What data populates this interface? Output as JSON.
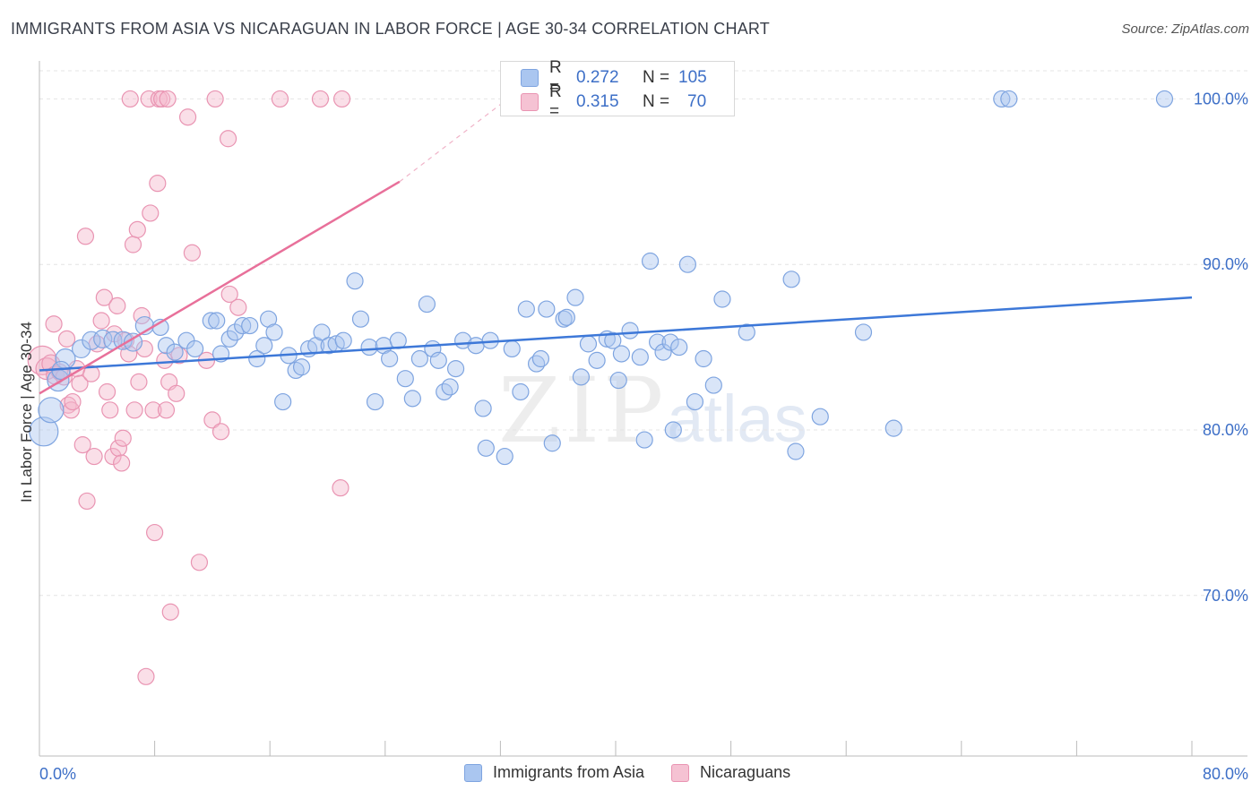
{
  "title": "IMMIGRANTS FROM ASIA VS NICARAGUAN IN LABOR FORCE | AGE 30-34 CORRELATION CHART",
  "source": "Source: ZipAtlas.com",
  "watermark": {
    "zip": "ZIP",
    "atlas": "atlas"
  },
  "colors": {
    "blue": "#3d78d8",
    "blue_fill": "#aac6f0",
    "pink": "#e8709a",
    "pink_fill": "#f5b8cc",
    "tick_text": "#3d6fc7"
  },
  "legend_top": [
    {
      "r_label": "R =",
      "r_value": "0.272",
      "n_label": "N =",
      "n_value": "105"
    },
    {
      "r_label": "R =",
      "r_value": "0.315",
      "n_label": "N =",
      "n_value": "70"
    }
  ],
  "legend_bottom": [
    "Immigrants from Asia",
    "Nicaraguans"
  ],
  "chart_data": {
    "type": "scatter",
    "title": "IMMIGRANTS FROM ASIA VS NICARAGUAN IN LABOR FORCE | AGE 30-34 CORRELATION CHART",
    "xlabel": "",
    "ylabel": "In Labor Force | Age 30-34",
    "xlim": [
      0,
      80
    ],
    "ylim": [
      60.3,
      101.7
    ],
    "x_tick_labels": [
      {
        "value": 0,
        "label": "0.0%"
      },
      {
        "value": 80,
        "label": "80.0%"
      }
    ],
    "y_ticks": [
      {
        "value": 70,
        "label": "70.0%"
      },
      {
        "value": 80,
        "label": "80.0%"
      },
      {
        "value": 90,
        "label": "90.0%"
      },
      {
        "value": 100,
        "label": "100.0%"
      }
    ],
    "x_minor_ticks": [
      0,
      8,
      16,
      24,
      32,
      40,
      48,
      56,
      64,
      72,
      80
    ],
    "series": [
      {
        "name": "Immigrants from Asia",
        "color": "#3d78d8",
        "R": 0.272,
        "N": 105,
        "trend": {
          "x0": 0,
          "y0": 83.6,
          "x1": 80,
          "y1": 88.0
        },
        "points": [
          [
            0.3,
            79.9,
            16
          ],
          [
            0.8,
            81.2,
            14
          ],
          [
            1.3,
            83.0,
            12
          ],
          [
            1.8,
            84.3,
            11
          ],
          [
            1.5,
            83.6,
            10
          ],
          [
            2.9,
            84.9,
            10
          ],
          [
            3.6,
            85.4,
            10
          ],
          [
            4.4,
            85.5,
            10
          ],
          [
            5.1,
            85.4,
            10
          ],
          [
            5.8,
            85.4,
            10
          ],
          [
            6.5,
            85.3,
            10
          ],
          [
            7.3,
            86.3,
            10
          ],
          [
            8.4,
            86.2,
            9
          ],
          [
            8.8,
            85.1,
            9
          ],
          [
            9.4,
            84.7,
            9
          ],
          [
            10.2,
            85.4,
            9
          ],
          [
            10.8,
            84.9,
            9
          ],
          [
            11.9,
            86.6,
            9
          ],
          [
            12.3,
            86.6,
            9
          ],
          [
            12.6,
            84.6,
            9
          ],
          [
            13.2,
            85.5,
            9
          ],
          [
            13.6,
            85.9,
            9
          ],
          [
            14.1,
            86.3,
            9
          ],
          [
            14.6,
            86.3,
            9
          ],
          [
            15.1,
            84.3,
            9
          ],
          [
            15.6,
            85.1,
            9
          ],
          [
            15.9,
            86.7,
            9
          ],
          [
            16.3,
            85.9,
            9
          ],
          [
            16.9,
            81.7,
            9
          ],
          [
            17.3,
            84.5,
            9
          ],
          [
            17.8,
            83.6,
            9
          ],
          [
            18.2,
            83.8,
            9
          ],
          [
            18.7,
            84.9,
            9
          ],
          [
            19.2,
            85.1,
            9
          ],
          [
            19.6,
            85.9,
            9
          ],
          [
            20.1,
            85.1,
            9
          ],
          [
            20.6,
            85.2,
            9
          ],
          [
            21.1,
            85.4,
            9
          ],
          [
            21.9,
            89.0,
            9
          ],
          [
            22.3,
            86.7,
            9
          ],
          [
            22.9,
            85.0,
            9
          ],
          [
            23.3,
            81.7,
            9
          ],
          [
            23.9,
            85.1,
            9
          ],
          [
            24.3,
            84.3,
            9
          ],
          [
            24.9,
            85.4,
            9
          ],
          [
            25.4,
            83.1,
            9
          ],
          [
            25.9,
            81.9,
            9
          ],
          [
            26.4,
            84.3,
            9
          ],
          [
            26.9,
            87.6,
            9
          ],
          [
            27.3,
            84.9,
            9
          ],
          [
            27.7,
            84.2,
            9
          ],
          [
            28.1,
            82.3,
            9
          ],
          [
            28.5,
            82.6,
            9
          ],
          [
            28.9,
            83.7,
            9
          ],
          [
            29.4,
            85.4,
            9
          ],
          [
            30.3,
            85.1,
            9
          ],
          [
            30.8,
            81.3,
            9
          ],
          [
            31.3,
            85.4,
            9
          ],
          [
            31.0,
            78.9,
            9
          ],
          [
            32.3,
            78.4,
            9
          ],
          [
            32.8,
            84.9,
            9
          ],
          [
            33.4,
            82.3,
            9
          ],
          [
            33.8,
            87.3,
            9
          ],
          [
            34.5,
            84.0,
            9
          ],
          [
            34.8,
            84.3,
            9
          ],
          [
            35.2,
            87.3,
            9
          ],
          [
            35.6,
            79.2,
            9
          ],
          [
            36.4,
            86.7,
            9
          ],
          [
            36.6,
            86.8,
            9
          ],
          [
            37.2,
            88.0,
            9
          ],
          [
            37.6,
            83.2,
            9
          ],
          [
            38.1,
            85.2,
            9
          ],
          [
            38.7,
            84.2,
            9
          ],
          [
            39.4,
            85.5,
            9
          ],
          [
            39.8,
            85.4,
            9
          ],
          [
            40.2,
            83.0,
            9
          ],
          [
            40.4,
            84.6,
            9
          ],
          [
            41.0,
            86.0,
            9
          ],
          [
            41.7,
            84.4,
            9
          ],
          [
            42.0,
            79.4,
            9
          ],
          [
            42.4,
            90.2,
            9
          ],
          [
            42.9,
            85.3,
            9
          ],
          [
            43.3,
            84.7,
            9
          ],
          [
            43.8,
            85.3,
            9
          ],
          [
            44.0,
            80.0,
            9
          ],
          [
            44.4,
            85.0,
            9
          ],
          [
            45.0,
            90.0,
            9
          ],
          [
            45.5,
            81.7,
            9
          ],
          [
            46.1,
            84.3,
            9
          ],
          [
            46.8,
            82.7,
            9
          ],
          [
            47.4,
            87.9,
            9
          ],
          [
            49.1,
            85.9,
            9
          ],
          [
            52.2,
            89.1,
            9
          ],
          [
            52.5,
            78.7,
            9
          ],
          [
            54.2,
            80.8,
            9
          ],
          [
            57.2,
            85.9,
            9
          ],
          [
            59.3,
            80.1,
            9
          ],
          [
            66.8,
            100.0,
            9
          ],
          [
            67.3,
            100.0,
            9
          ],
          [
            78.1,
            100.0,
            9
          ]
        ]
      },
      {
        "name": "Nicaraguans",
        "color": "#e8709a",
        "R": 0.315,
        "N": 70,
        "trend": {
          "x0": 0,
          "y0": 82.2,
          "x1": 25,
          "y1": 95.0,
          "dash_x1": 32.5,
          "dash_y1": 100.0
        },
        "points": [
          [
            0.2,
            84.2,
            16
          ],
          [
            0.5,
            83.7,
            12
          ],
          [
            0.8,
            84.0,
            10
          ],
          [
            1.1,
            83.3,
            10
          ],
          [
            1.0,
            86.4,
            9
          ],
          [
            1.4,
            83.5,
            9
          ],
          [
            1.7,
            83.2,
            9
          ],
          [
            1.9,
            85.5,
            9
          ],
          [
            2.0,
            81.5,
            9
          ],
          [
            2.2,
            81.2,
            9
          ],
          [
            2.3,
            81.7,
            9
          ],
          [
            2.6,
            83.7,
            9
          ],
          [
            2.8,
            82.8,
            9
          ],
          [
            3.0,
            79.1,
            9
          ],
          [
            3.2,
            91.7,
            9
          ],
          [
            3.3,
            75.7,
            9
          ],
          [
            3.6,
            83.4,
            9
          ],
          [
            3.8,
            78.4,
            9
          ],
          [
            4.0,
            85.2,
            9
          ],
          [
            4.3,
            86.6,
            9
          ],
          [
            4.5,
            88.0,
            9
          ],
          [
            4.7,
            82.3,
            9
          ],
          [
            4.9,
            81.2,
            9
          ],
          [
            5.1,
            78.4,
            9
          ],
          [
            5.2,
            85.8,
            9
          ],
          [
            5.4,
            87.5,
            9
          ],
          [
            5.5,
            78.9,
            9
          ],
          [
            5.7,
            78.0,
            9
          ],
          [
            5.8,
            79.5,
            9
          ],
          [
            6.0,
            85.4,
            9
          ],
          [
            6.2,
            84.6,
            9
          ],
          [
            6.3,
            100.0,
            9
          ],
          [
            6.5,
            91.2,
            9
          ],
          [
            6.6,
            81.2,
            9
          ],
          [
            6.8,
            92.1,
            9
          ],
          [
            6.9,
            82.9,
            9
          ],
          [
            7.1,
            86.9,
            9
          ],
          [
            7.3,
            84.9,
            9
          ],
          [
            7.4,
            65.1,
            9
          ],
          [
            7.6,
            100.0,
            9
          ],
          [
            7.7,
            93.1,
            9
          ],
          [
            7.9,
            81.2,
            9
          ],
          [
            8.0,
            73.8,
            9
          ],
          [
            8.2,
            94.9,
            9
          ],
          [
            8.3,
            100.0,
            9
          ],
          [
            8.5,
            100.0,
            9
          ],
          [
            8.7,
            84.2,
            9
          ],
          [
            8.8,
            81.2,
            9
          ],
          [
            8.9,
            100.0,
            9
          ],
          [
            9.0,
            82.9,
            9
          ],
          [
            9.1,
            69.0,
            9
          ],
          [
            9.5,
            82.2,
            9
          ],
          [
            9.7,
            84.5,
            9
          ],
          [
            10.3,
            98.9,
            9
          ],
          [
            10.6,
            90.7,
            9
          ],
          [
            11.1,
            72.0,
            9
          ],
          [
            11.6,
            84.2,
            9
          ],
          [
            12.0,
            80.6,
            9
          ],
          [
            12.2,
            100.0,
            9
          ],
          [
            12.6,
            79.9,
            9
          ],
          [
            13.1,
            97.6,
            9
          ],
          [
            13.2,
            88.2,
            9
          ],
          [
            13.8,
            87.4,
            9
          ],
          [
            16.7,
            100.0,
            9
          ],
          [
            19.5,
            100.0,
            9
          ],
          [
            20.9,
            76.5,
            9
          ],
          [
            21.0,
            100.0,
            9
          ]
        ]
      }
    ]
  }
}
